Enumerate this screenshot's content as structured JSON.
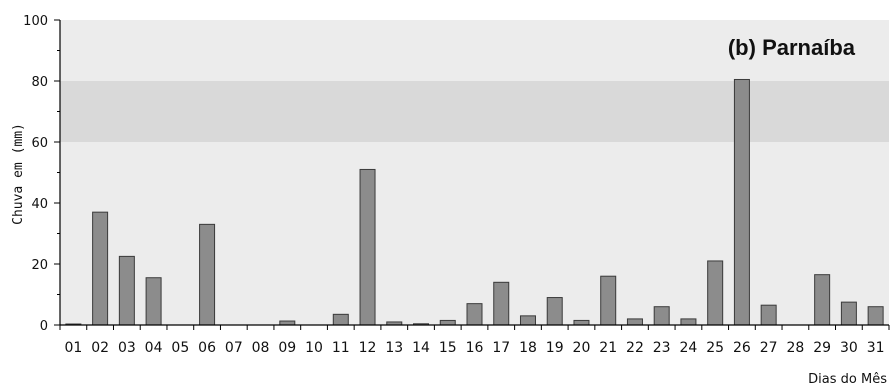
{
  "chart_data": {
    "type": "bar",
    "title": "(b) Parnaíba",
    "ylabel": "Chuva em (mm)",
    "xlabel": "Dias do Mês",
    "ylim": [
      0,
      100
    ],
    "yticks": [
      0,
      20,
      40,
      60,
      80,
      100
    ],
    "grid": false,
    "categories": [
      "01",
      "02",
      "03",
      "04",
      "05",
      "06",
      "07",
      "08",
      "09",
      "10",
      "11",
      "12",
      "13",
      "14",
      "15",
      "16",
      "17",
      "18",
      "19",
      "20",
      "21",
      "22",
      "23",
      "24",
      "25",
      "26",
      "27",
      "28",
      "29",
      "30",
      "31"
    ],
    "values": [
      0.3,
      37,
      22.5,
      15.5,
      0,
      33,
      0,
      0,
      1.3,
      0,
      3.5,
      51,
      1,
      0.4,
      1.5,
      7,
      14,
      3,
      9,
      1.5,
      16,
      2,
      6,
      2,
      21,
      80.5,
      6.5,
      0,
      16.5,
      7.5,
      6
    ],
    "colors": {
      "bar_fill": "#8c8c8c",
      "bar_edge": "#3a3a3a",
      "band_light": "#ececec",
      "band_dark": "#d9d9d9"
    }
  }
}
